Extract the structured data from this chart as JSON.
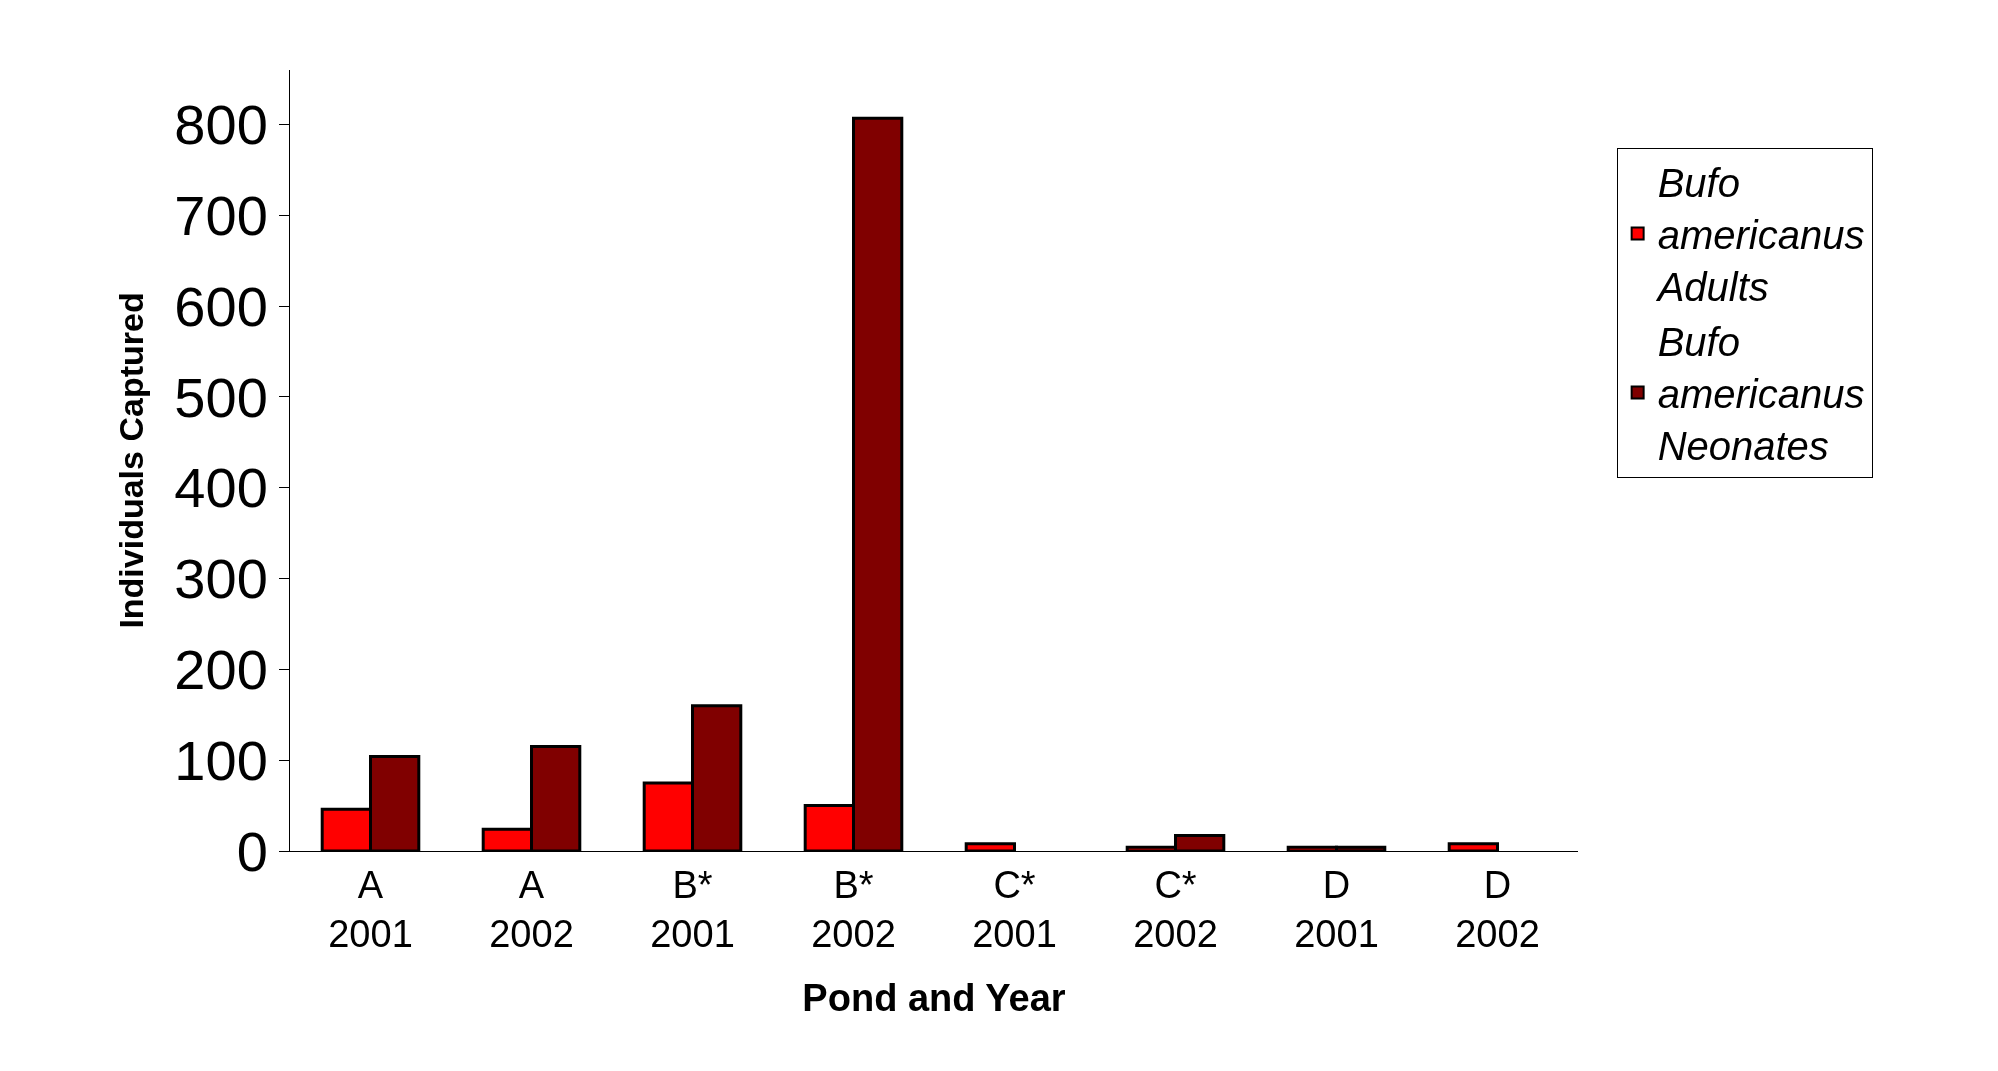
{
  "chart_data": {
    "type": "bar",
    "xlabel": "Pond and Year",
    "ylabel": "Individuals Captured",
    "categories": [
      "A 2001",
      "A 2002",
      "B* 2001",
      "B* 2002",
      "C* 2001",
      "C* 2002",
      "D 2001",
      "D 2002"
    ],
    "series": [
      {
        "name": "Bufo americanus Adults",
        "color": "#ff0000",
        "values": [
          46,
          24,
          75,
          50,
          8,
          4,
          4,
          8
        ]
      },
      {
        "name": "Bufo americanus Neonates",
        "color": "#800000",
        "values": [
          104,
          115,
          160,
          807,
          null,
          17,
          4,
          null
        ]
      }
    ],
    "ylim": [
      0,
      860
    ],
    "yticks": [
      0,
      100,
      200,
      300,
      400,
      500,
      600,
      700,
      800
    ],
    "grid": false,
    "legend": "right"
  }
}
